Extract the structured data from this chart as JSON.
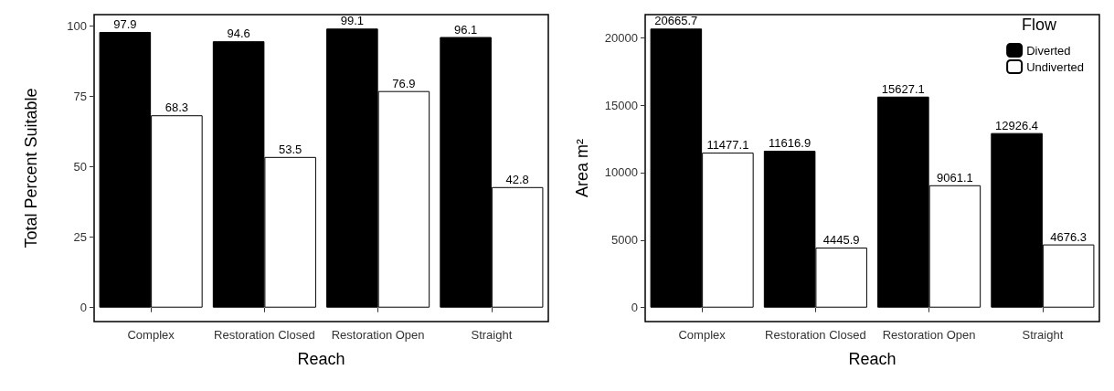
{
  "chart_data": [
    {
      "type": "bar",
      "xlabel": "Reach",
      "ylabel": "Total Percent Suitable",
      "categories": [
        "Complex",
        "Restoration Closed",
        "Restoration Open",
        "Straight"
      ],
      "series": [
        {
          "color": "#000000",
          "values": [
            97.9,
            94.6,
            99.1,
            96.1
          ]
        },
        {
          "color": "#ffffff",
          "values": [
            68.3,
            53.5,
            76.9,
            42.8
          ]
        }
      ],
      "ylim": [
        -4.955,
        104.055
      ],
      "yticks": [
        0,
        25,
        50,
        75,
        100
      ],
      "grid": false,
      "legend": false,
      "data_labels": true
    },
    {
      "type": "bar",
      "xlabel": "Reach",
      "ylabel": "Area m²",
      "categories": [
        "Complex",
        "Restoration Closed",
        "Restoration Open",
        "Straight"
      ],
      "series": [
        {
          "name": "Diverted",
          "color": "#000000",
          "values": [
            20665.7,
            11616.9,
            15627.1,
            12926.4
          ]
        },
        {
          "name": "Undiverted",
          "color": "#ffffff",
          "values": [
            11477.1,
            4445.9,
            9061.1,
            4676.3
          ]
        }
      ],
      "ylim": [
        -1033.3,
        21699
      ],
      "yticks": [
        0,
        5000,
        10000,
        15000,
        20000
      ],
      "grid": false,
      "legend": "top right",
      "legend_title": "Flow",
      "data_labels": true
    }
  ]
}
